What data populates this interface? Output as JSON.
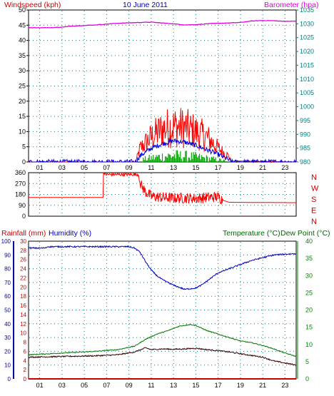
{
  "date": "10 June 2011",
  "hours": [
    "01",
    "03",
    "05",
    "07",
    "09",
    "11",
    "13",
    "15",
    "17",
    "19",
    "21",
    "23"
  ],
  "colors": {
    "background": "#ffffff",
    "axis_black": "#000000",
    "grid": "#008080",
    "wind_label": "#cc0000",
    "baro": "#dd00dd",
    "left_axis_blue": "#0000aa",
    "dir_labels": "#cc0000",
    "temp_label": "#006600",
    "temp_axis": "#008800",
    "rain": "#cc0000",
    "humidity": "#0000bb",
    "temperature": "#007700",
    "dewpoint": "#330000",
    "wind_avg": "#0000dd",
    "wind_calm": "#00aa00",
    "wind_gust": "#ff0000"
  },
  "top_panel": {
    "left_label": "Windspeed (kph)",
    "right_label": "Barometer (hpa)",
    "left_ticks": [
      "0",
      "5",
      "10",
      "15",
      "20",
      "25",
      "30",
      "35",
      "40",
      "45",
      "50"
    ],
    "right_ticks": [
      "980",
      "985",
      "990",
      "995",
      "1000",
      "1005",
      "1010",
      "1015",
      "1020",
      "1025",
      "1030",
      "1035"
    ]
  },
  "mid_panel": {
    "left_ticks": [
      "0",
      "90",
      "180",
      "270",
      "360"
    ],
    "direction_labels": [
      "N",
      "W",
      "S",
      "E",
      "N"
    ]
  },
  "bottom_panel": {
    "rain_label": "Rainfall (mm)",
    "humidity_label": "Humidity (%)",
    "temp_label": "Temperature (°C)",
    "dew_label": "Dew Point (°C)",
    "humidity_ticks": [
      "0",
      "10",
      "20",
      "30",
      "40",
      "50",
      "60",
      "70",
      "80",
      "90",
      "100"
    ],
    "rain_ticks": [
      "0",
      "2",
      "4",
      "6",
      "8",
      "10",
      "12",
      "14",
      "16",
      "18",
      "20",
      "22",
      "24",
      "26",
      "28",
      "30"
    ],
    "temp_ticks": [
      "0",
      "5",
      "10",
      "15",
      "20",
      "25",
      "30",
      "35",
      "40"
    ]
  },
  "chart_data": [
    {
      "type": "line",
      "title": "10 June 2011",
      "x": "hour of day",
      "xlim": [
        0,
        24
      ],
      "y_left": {
        "label": "Windspeed (kph)",
        "lim": [
          0,
          50
        ]
      },
      "y_right": {
        "label": "Barometer (hpa)",
        "lim": [
          980,
          1035
        ]
      },
      "series": [
        {
          "name": "Barometer (hpa)",
          "axis": "right",
          "points": [
            [
              0,
              1028.6
            ],
            [
              2,
              1028.6
            ],
            [
              3,
              1028.8
            ],
            [
              4,
              1029.2
            ],
            [
              6,
              1029.6
            ],
            [
              8,
              1030.2
            ],
            [
              10,
              1030.5
            ],
            [
              11,
              1030.6
            ],
            [
              12,
              1030.3
            ],
            [
              13,
              1030
            ],
            [
              14,
              1029.6
            ],
            [
              15,
              1029.7
            ],
            [
              16,
              1030
            ],
            [
              17,
              1030.2
            ],
            [
              18,
              1030.3
            ],
            [
              19,
              1030.5
            ],
            [
              20,
              1031
            ],
            [
              21,
              1031.2
            ],
            [
              22,
              1031.1
            ],
            [
              23,
              1030.9
            ],
            [
              24,
              1031
            ]
          ]
        },
        {
          "axis": "left",
          "note_free": true,
          "points": [
            [
              0,
              0
            ],
            [
              9.6,
              0
            ],
            [
              10,
              2
            ],
            [
              11,
              4.5
            ],
            [
              12,
              6
            ],
            [
              13,
              7
            ],
            [
              14,
              6.5
            ],
            [
              15,
              5.5
            ],
            [
              16,
              4
            ],
            [
              17,
              2.5
            ],
            [
              17.8,
              1
            ],
            [
              18.2,
              0
            ],
            [
              24,
              0
            ]
          ]
        },
        {
          "axis": "left",
          "points": [
            [
              0,
              0
            ],
            [
              9.6,
              0
            ],
            [
              10,
              5
            ],
            [
              11,
              9
            ],
            [
              12,
              12
            ],
            [
              13,
              13
            ],
            [
              14,
              12.5
            ],
            [
              15,
              11
            ],
            [
              16,
              9
            ],
            [
              17,
              5
            ],
            [
              18,
              2
            ],
            [
              18.2,
              0
            ],
            [
              24,
              0
            ]
          ]
        }
      ]
    },
    {
      "type": "line",
      "x": "hour of day",
      "xlim": [
        0,
        24
      ],
      "y_left": {
        "lim": [
          0,
          360
        ]
      },
      "series": [
        {
          "points": [
            [
              0,
              155
            ],
            [
              6.7,
              155
            ],
            [
              6.7,
              360
            ],
            [
              7,
              345
            ],
            [
              9,
              350
            ],
            [
              9.8,
              345
            ],
            [
              10,
              270
            ],
            [
              10.5,
              200
            ],
            [
              11,
              165
            ],
            [
              12,
              155
            ],
            [
              13,
              150
            ],
            [
              14,
              150
            ],
            [
              15,
              148
            ],
            [
              16,
              155
            ],
            [
              17,
              160
            ],
            [
              17.5,
              130
            ],
            [
              18,
              115
            ],
            [
              24,
              112
            ]
          ]
        }
      ]
    },
    {
      "type": "line",
      "x": "hour of day",
      "xlim": [
        0,
        24
      ],
      "y_left": {
        "label": "Humidity (%)",
        "lim": [
          0,
          100
        ]
      },
      "y_left_inner": {
        "label": "Rainfall (mm)",
        "lim": [
          0,
          30
        ]
      },
      "y_right": {
        "label": "Temperature (°C) / Dew Point (°C)",
        "lim": [
          0,
          40
        ]
      },
      "series": [
        {
          "name": "Humidity (%)",
          "axis": "left",
          "points": [
            [
              0,
              95
            ],
            [
              1.5,
              95
            ],
            [
              1.7,
              96
            ],
            [
              5,
              96
            ],
            [
              9,
              96
            ],
            [
              9.5,
              95
            ],
            [
              10,
              92
            ],
            [
              10.5,
              85
            ],
            [
              11,
              79
            ],
            [
              11.5,
              75
            ],
            [
              12,
              72
            ],
            [
              12.5,
              70
            ],
            [
              13,
              68
            ],
            [
              14,
              65
            ],
            [
              15,
              66
            ],
            [
              15.5,
              68
            ],
            [
              16,
              71
            ],
            [
              16.5,
              74
            ],
            [
              17,
              77
            ],
            [
              18,
              80
            ],
            [
              19,
              83
            ],
            [
              20,
              86
            ],
            [
              21,
              88
            ],
            [
              22,
              90
            ],
            [
              23,
              90.5
            ],
            [
              24,
              91
            ]
          ]
        },
        {
          "name": "Temperature (°C)",
          "axis": "right",
          "points": [
            [
              0,
              7
            ],
            [
              3,
              7.5
            ],
            [
              6,
              8
            ],
            [
              8,
              8.5
            ],
            [
              9.5,
              9.5
            ],
            [
              10.5,
              11.5
            ],
            [
              11.5,
              13
            ],
            [
              12.5,
              14
            ],
            [
              13.5,
              15.3
            ],
            [
              14.5,
              15.8
            ],
            [
              15,
              15.5
            ],
            [
              16,
              14
            ],
            [
              17,
              13
            ],
            [
              18,
              12
            ],
            [
              19,
              11
            ],
            [
              20,
              10.5
            ],
            [
              21,
              9.7
            ],
            [
              22,
              8.7
            ],
            [
              23,
              7.5
            ],
            [
              24,
              6.5
            ]
          ]
        },
        {
          "name": "Dew Point (°C)",
          "axis": "right",
          "points": [
            [
              0,
              6.3
            ],
            [
              3,
              6.5
            ],
            [
              6,
              6.7
            ],
            [
              8,
              7
            ],
            [
              9.5,
              7.8
            ],
            [
              10.5,
              9
            ],
            [
              11,
              8.5
            ],
            [
              12,
              8.7
            ],
            [
              13,
              8.6
            ],
            [
              14,
              8.7
            ],
            [
              15,
              8.9
            ],
            [
              16,
              8.5
            ],
            [
              17,
              8.2
            ],
            [
              18,
              7.8
            ],
            [
              19,
              7.3
            ],
            [
              20,
              6.8
            ],
            [
              21,
              6.3
            ],
            [
              22,
              5.2
            ],
            [
              23,
              4.6
            ],
            [
              24,
              4
            ]
          ]
        },
        {
          "name": "Rainfall (mm)",
          "axis": "left_inner",
          "points": [
            [
              0,
              0
            ],
            [
              24,
              0
            ]
          ]
        }
      ]
    }
  ]
}
